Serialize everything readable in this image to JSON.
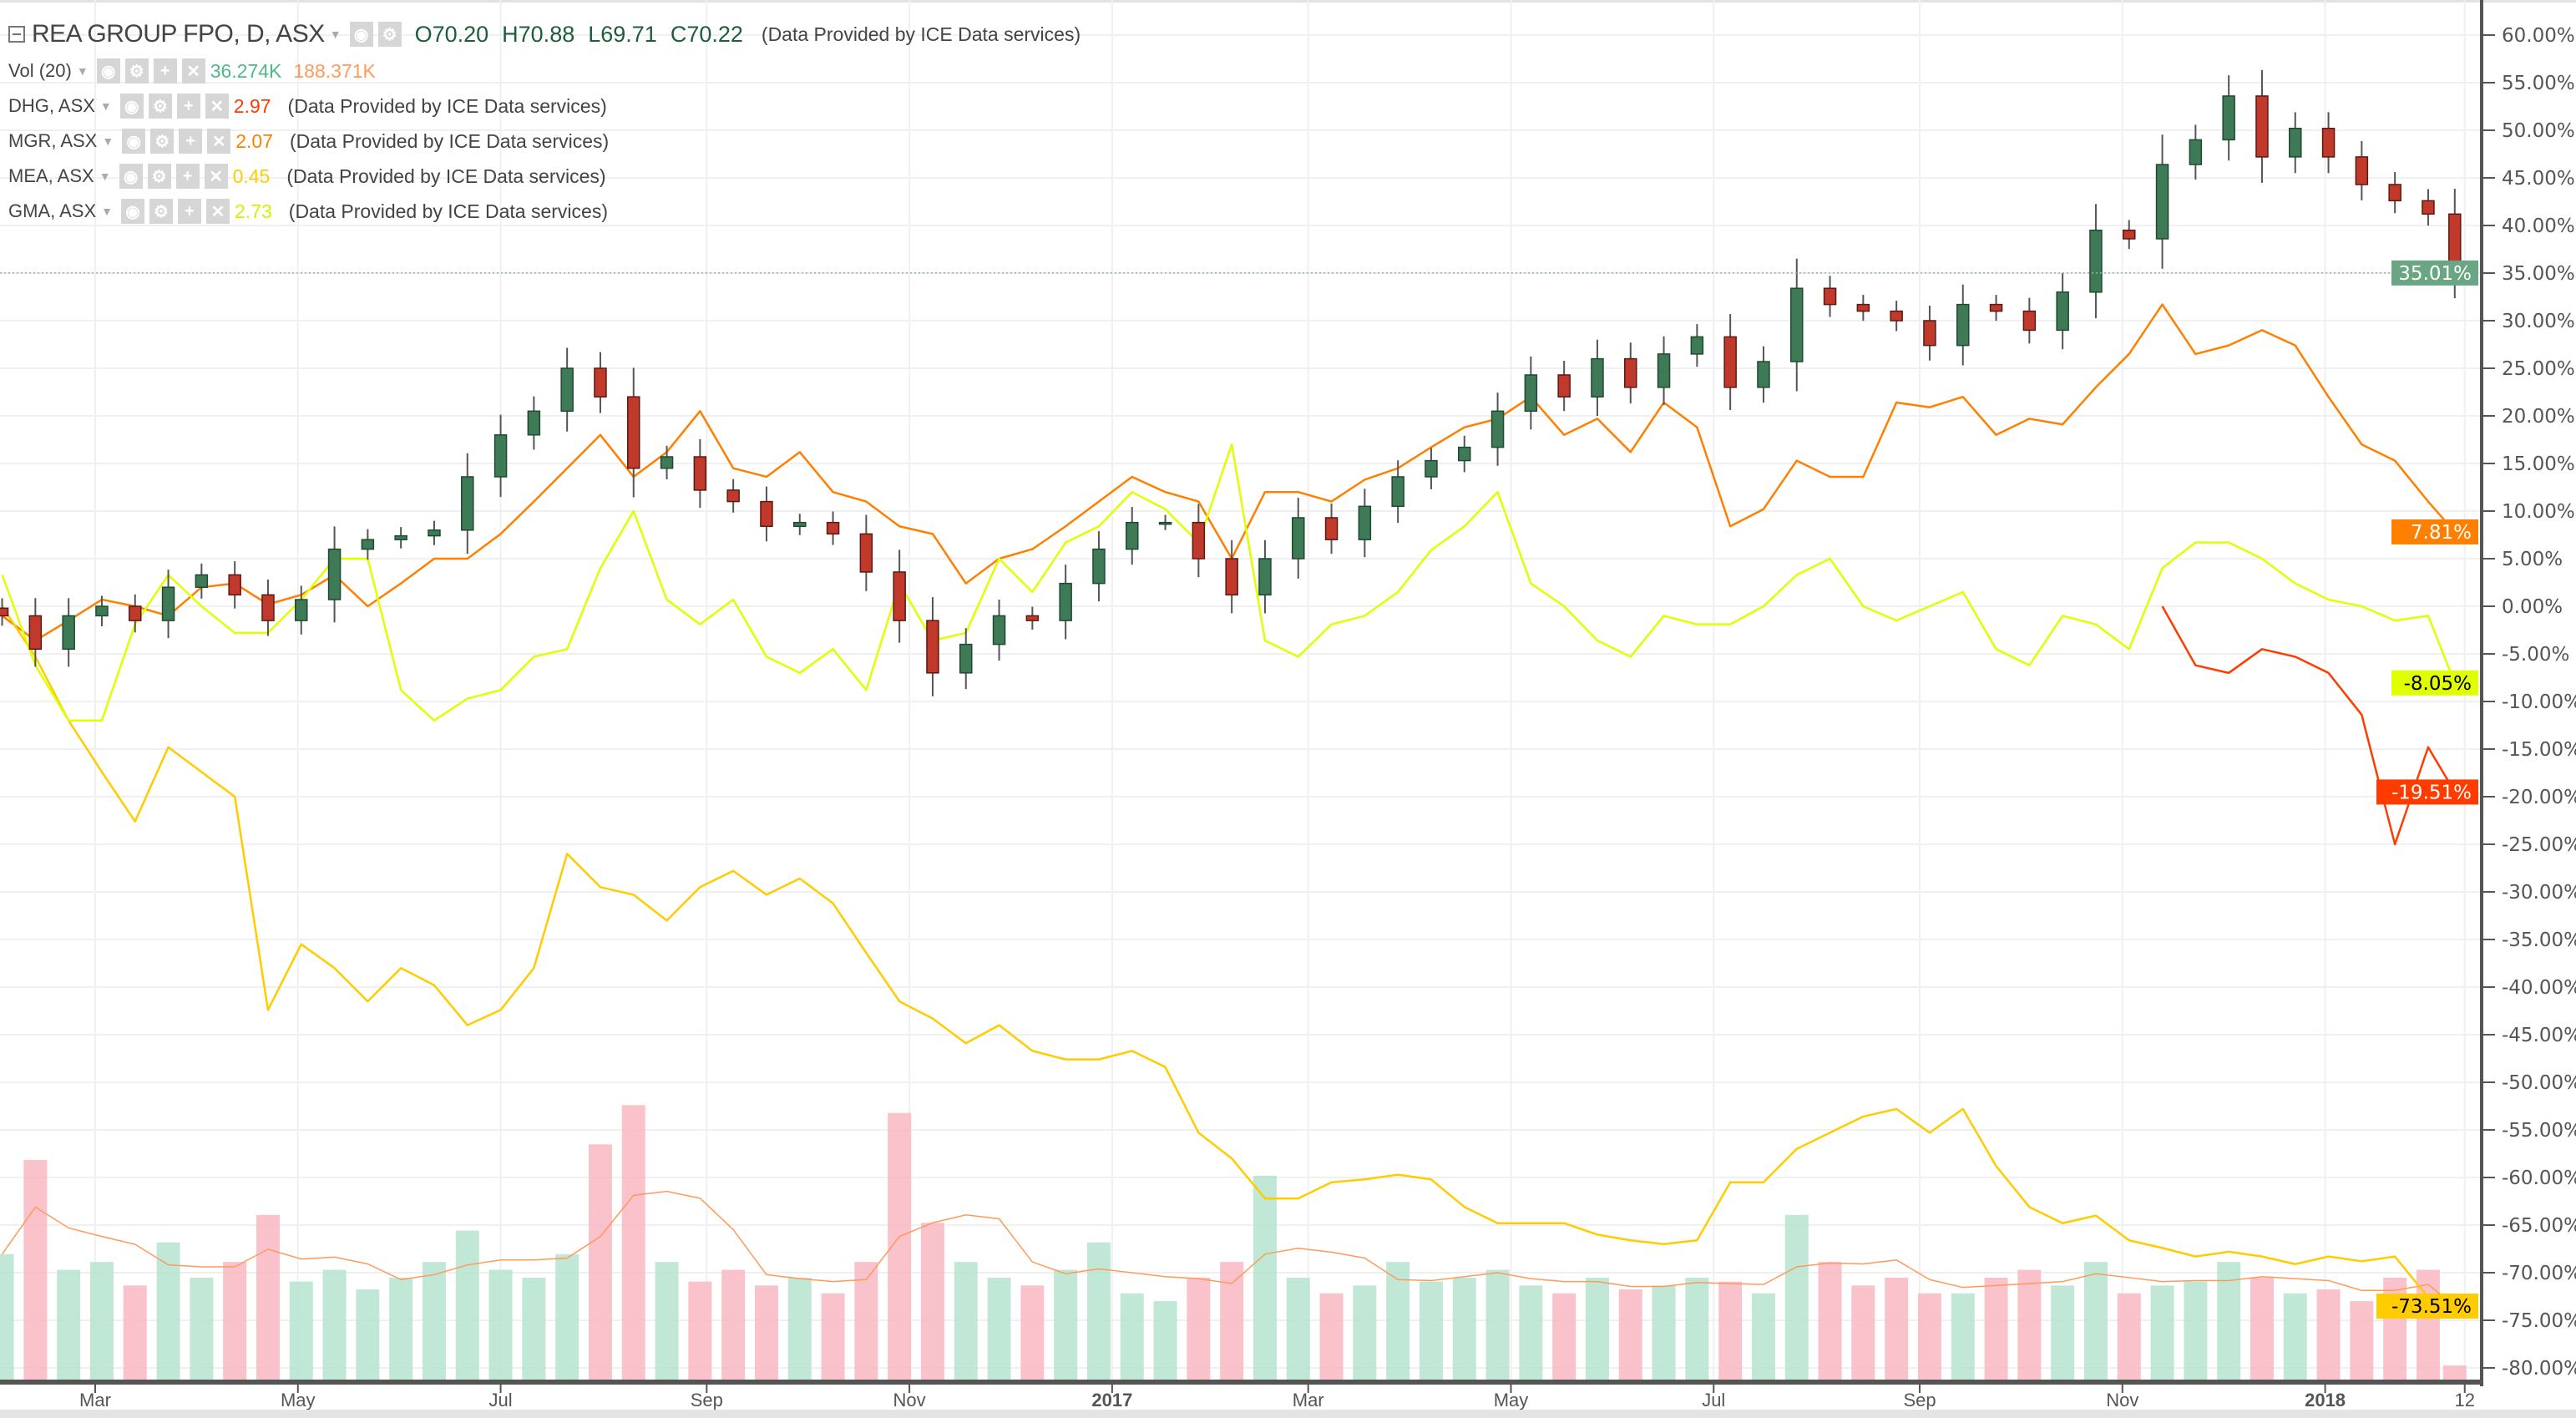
{
  "legend": {
    "main": {
      "title": "REA GROUP FPO, D, ASX",
      "open": "O70.20",
      "high": "H70.88",
      "low": "L69.71",
      "close": "C70.22",
      "source": "(Data Provided by ICE Data services)"
    },
    "volume": {
      "name": "Vol (20)",
      "value": "36.274K",
      "ma": "188.371K",
      "value_color": "#4dbb86",
      "ma_color": "#ff9a5a"
    },
    "compare": [
      {
        "name": "DHG, ASX",
        "value": "2.97",
        "color": "#ff3b00",
        "source": "(Data Provided by ICE Data services)"
      },
      {
        "name": "MGR, ASX",
        "value": "2.07",
        "color": "#ff8000",
        "source": "(Data Provided by ICE Data services)"
      },
      {
        "name": "MEA, ASX",
        "value": "0.45",
        "color": "#ffcc00",
        "source": "(Data Provided by ICE Data services)"
      },
      {
        "name": "GMA, ASX",
        "value": "2.73",
        "color": "#d8f000",
        "source": "(Data Provided by ICE Data services)"
      }
    ],
    "icons": [
      "eye-icon",
      "gear-icon",
      "plus-icon",
      "close-icon"
    ]
  },
  "chart_data": {
    "type": "line",
    "ylim": [
      -80,
      60
    ],
    "grid": true,
    "y_ticks": [
      "60.00%",
      "55.00%",
      "50.00%",
      "45.00%",
      "40.00%",
      "35.00%",
      "30.00%",
      "25.00%",
      "20.00%",
      "15.00%",
      "10.00%",
      "5.00%",
      "0.00%",
      "-5.00%",
      "-10.00%",
      "-15.00%",
      "-20.00%",
      "-25.00%",
      "-30.00%",
      "-35.00%",
      "-40.00%",
      "-45.00%",
      "-50.00%",
      "-55.00%",
      "-60.00%",
      "-65.00%",
      "-70.00%",
      "-75.00%",
      "-80.00%"
    ],
    "x_ticks": [
      {
        "label": "Mar",
        "date": "2016-03-01"
      },
      {
        "label": "May",
        "date": "2016-05-01"
      },
      {
        "label": "Jul",
        "date": "2016-07-01"
      },
      {
        "label": "Sep",
        "date": "2016-09-01"
      },
      {
        "label": "Nov",
        "date": "2016-11-01"
      },
      {
        "label": "2017",
        "date": "2017-01-01",
        "bold": true
      },
      {
        "label": "Mar",
        "date": "2017-03-01"
      },
      {
        "label": "May",
        "date": "2017-05-01"
      },
      {
        "label": "Jul",
        "date": "2017-07-01"
      },
      {
        "label": "Sep",
        "date": "2017-09-01"
      },
      {
        "label": "Nov",
        "date": "2017-11-01"
      },
      {
        "label": "2018",
        "date": "2018-01-01",
        "bold": true
      },
      {
        "label": "12",
        "date": "2018-02-12"
      }
    ],
    "dates": [
      "2016-02-02",
      "2016-02-12",
      "2016-02-22",
      "2016-03-03",
      "2016-03-13",
      "2016-03-23",
      "2016-04-02",
      "2016-04-12",
      "2016-04-22",
      "2016-05-02",
      "2016-05-12",
      "2016-05-22",
      "2016-06-01",
      "2016-06-11",
      "2016-06-21",
      "2016-07-01",
      "2016-07-11",
      "2016-07-21",
      "2016-07-31",
      "2016-08-10",
      "2016-08-20",
      "2016-08-30",
      "2016-09-09",
      "2016-09-19",
      "2016-09-29",
      "2016-10-09",
      "2016-10-19",
      "2016-10-29",
      "2016-11-08",
      "2016-11-18",
      "2016-11-28",
      "2016-12-08",
      "2016-12-18",
      "2016-12-28",
      "2017-01-07",
      "2017-01-17",
      "2017-01-27",
      "2017-02-06",
      "2017-02-16",
      "2017-02-26",
      "2017-03-08",
      "2017-03-18",
      "2017-03-28",
      "2017-04-07",
      "2017-04-17",
      "2017-04-27",
      "2017-05-07",
      "2017-05-17",
      "2017-05-27",
      "2017-06-06",
      "2017-06-16",
      "2017-06-26",
      "2017-07-06",
      "2017-07-16",
      "2017-07-26",
      "2017-08-05",
      "2017-08-15",
      "2017-08-25",
      "2017-09-04",
      "2017-09-14",
      "2017-09-24",
      "2017-10-04",
      "2017-10-14",
      "2017-10-24",
      "2017-11-03",
      "2017-11-13",
      "2017-11-23",
      "2017-12-03",
      "2017-12-13",
      "2017-12-23",
      "2018-01-02",
      "2018-01-12",
      "2018-01-22",
      "2018-02-01",
      "2018-02-09"
    ],
    "main_series": {
      "name": "REA GROUP FPO",
      "style": "candles",
      "up_color": "#3d7a55",
      "down_color": "#c0392b",
      "last_label": "35.01%",
      "label_color": "#6aa684",
      "values": [
        -1,
        -4.5,
        -1,
        0,
        -1.5,
        2,
        3.3,
        1.2,
        -1.5,
        0.7,
        6,
        7,
        7.4,
        8,
        13.6,
        18,
        20.5,
        25,
        22,
        14.5,
        15.7,
        12.2,
        11,
        8.4,
        8.8,
        7.6,
        3.6,
        -1.5,
        -7,
        -4,
        -1,
        -1.5,
        2.4,
        6,
        8.8,
        8.8,
        5,
        1.2,
        5,
        9.3,
        7,
        10.5,
        13.6,
        15.3,
        16.7,
        20.5,
        24.3,
        22,
        26,
        23,
        26.5,
        28.3,
        23,
        25.7,
        33.4,
        31.7,
        31,
        30,
        27.4,
        31.7,
        31,
        29,
        33,
        39.5,
        38.6,
        46.4,
        49,
        53.6,
        47.2,
        50.2,
        47.2,
        44.3,
        42.6,
        41.2,
        35.01
      ]
    },
    "series": [
      {
        "name": "MGR, ASX",
        "color": "#ff8000",
        "last_label": "7.81%",
        "label_text_color": "#ffffff",
        "values": [
          -1,
          -3.6,
          -1.5,
          0.7,
          0,
          -1,
          2,
          2.4,
          0.2,
          1.2,
          3.3,
          0,
          2.4,
          5,
          5,
          7.6,
          11,
          14.5,
          18,
          13.6,
          16.2,
          20.5,
          14.5,
          13.6,
          16.2,
          12,
          11,
          8.4,
          7.6,
          2.4,
          5,
          6,
          8.4,
          11,
          13.6,
          12,
          11,
          5,
          12,
          12,
          11,
          13.3,
          14.5,
          16.7,
          18.8,
          19.7,
          22,
          18,
          19.7,
          16.2,
          21.4,
          18.8,
          8.4,
          10.2,
          15.3,
          13.6,
          13.6,
          21.4,
          20.9,
          22,
          18,
          19.7,
          19.1,
          23,
          26.5,
          31.7,
          26.5,
          27.4,
          29,
          27.4,
          22,
          17,
          15.3,
          11,
          7.81
        ]
      },
      {
        "name": "MEA, ASX",
        "color": "#ffcc00",
        "last_label": "-73.51%",
        "label_text_color": "#000000",
        "values": [
          0,
          -5.3,
          -12,
          -17.4,
          -22.6,
          -14.8,
          -17.4,
          -20,
          -42.4,
          -35.5,
          -38,
          -41.5,
          -38,
          -39.8,
          -44,
          -42.4,
          -38,
          -26,
          -29.5,
          -30.3,
          -33,
          -29.5,
          -27.8,
          -30.3,
          -28.6,
          -31.2,
          -36.4,
          -41.5,
          -43.3,
          -45.9,
          -44,
          -46.7,
          -47.6,
          -47.6,
          -46.7,
          -48.4,
          -55.3,
          -58,
          -62.2,
          -62.2,
          -60.5,
          -60.2,
          -59.7,
          -60.2,
          -63.1,
          -64.8,
          -64.8,
          -64.8,
          -66,
          -66.6,
          -67,
          -66.6,
          -60.5,
          -60.5,
          -57,
          -55.3,
          -53.6,
          -52.8,
          -55.3,
          -52.8,
          -58.8,
          -63.1,
          -64.8,
          -64,
          -66.6,
          -67.4,
          -68.3,
          -67.8,
          -68.3,
          -69.1,
          -68.3,
          -68.8,
          -68.3,
          -72.6,
          -73.51
        ]
      },
      {
        "name": "GMA, ASX",
        "color": "#e0ff00",
        "last_label": "-8.05%",
        "label_text_color": "#000000",
        "values": [
          3.3,
          -6.2,
          -12,
          -12,
          -1.9,
          3.3,
          0,
          -2.8,
          -2.8,
          0.7,
          5,
          5,
          -8.8,
          -12,
          -9.7,
          -8.8,
          -5.3,
          -4.5,
          4,
          10,
          0.7,
          -1.9,
          0.7,
          -5.3,
          -7,
          -4.5,
          -8.8,
          2.4,
          -3.6,
          -2.8,
          5,
          1.5,
          6.7,
          8.4,
          12,
          10.2,
          6.7,
          17,
          -3.6,
          -5.3,
          -1.9,
          -1,
          1.5,
          5.9,
          8.4,
          12,
          2.4,
          0,
          -3.6,
          -5.3,
          -1,
          -1.9,
          -1.9,
          0,
          3.3,
          5,
          0,
          -1.5,
          0,
          1.5,
          -4.5,
          -6.2,
          -1,
          -1.9,
          -4.5,
          4,
          6.7,
          6.7,
          5,
          2.4,
          0.7,
          0,
          -1.5,
          -1,
          -8.05
        ]
      },
      {
        "name": "DHG, ASX",
        "color": "#ff3b00",
        "last_label": "-19.51%",
        "label_text_color": "#ffffff",
        "values": [
          null,
          null,
          null,
          null,
          null,
          null,
          null,
          null,
          null,
          null,
          null,
          null,
          null,
          null,
          null,
          null,
          null,
          null,
          null,
          null,
          null,
          null,
          null,
          null,
          null,
          null,
          null,
          null,
          null,
          null,
          null,
          null,
          null,
          null,
          null,
          null,
          null,
          null,
          null,
          null,
          null,
          null,
          null,
          null,
          null,
          null,
          null,
          null,
          null,
          null,
          null,
          null,
          null,
          null,
          null,
          null,
          null,
          null,
          null,
          null,
          null,
          null,
          null,
          null,
          null,
          0,
          -6.2,
          -7,
          -4.5,
          -5.3,
          -7,
          -11.4,
          -25,
          -14.8,
          -19.51
        ]
      }
    ],
    "volume": {
      "name": "Vol (20)",
      "unit": "K",
      "up_color": "#b6e4cf",
      "down_color": "#f9b9c3",
      "ma_color": "#ff9a5a",
      "values": [
        320,
        560,
        280,
        300,
        240,
        350,
        260,
        300,
        420,
        250,
        280,
        230,
        260,
        300,
        380,
        280,
        260,
        320,
        600,
        700,
        300,
        250,
        280,
        240,
        260,
        220,
        300,
        680,
        400,
        300,
        260,
        240,
        280,
        350,
        220,
        200,
        260,
        300,
        520,
        260,
        220,
        240,
        300,
        250,
        260,
        280,
        240,
        220,
        260,
        230,
        240,
        260,
        250,
        220,
        420,
        300,
        240,
        260,
        220,
        220,
        260,
        280,
        240,
        300,
        220,
        240,
        250,
        300,
        260,
        220,
        230,
        200,
        260,
        280,
        36
      ]
    }
  }
}
